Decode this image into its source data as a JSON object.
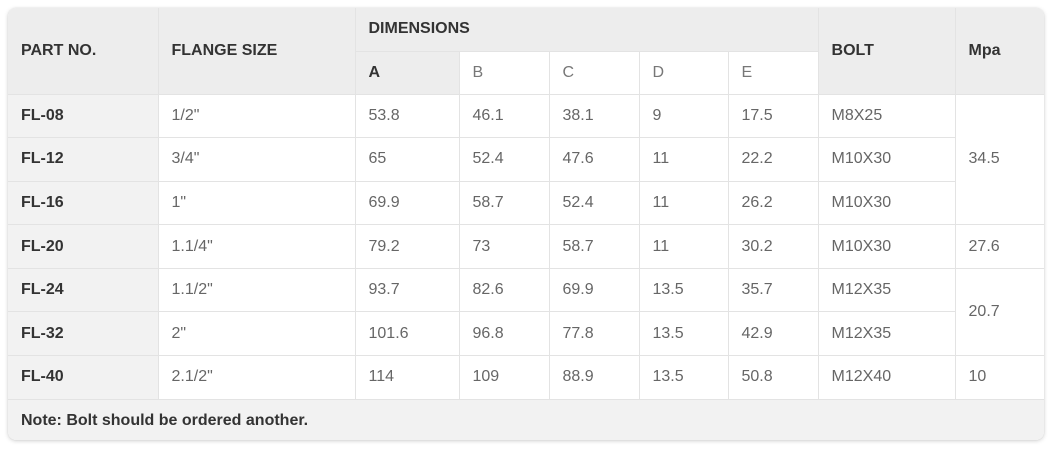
{
  "table": {
    "headers": {
      "part_no": "PART NO.",
      "flange_size": "FLANGE SIZE",
      "dimensions": "DIMENSIONS",
      "bolt": "BOLT",
      "mpa": "Mpa",
      "sub": [
        "A",
        "B",
        "C",
        "D",
        "E"
      ]
    },
    "rows": [
      {
        "part": "FL-08",
        "size": "1/2\"",
        "a": "53.8",
        "b": "46.1",
        "c": "38.1",
        "d": "9",
        "e": "17.5",
        "bolt": "M8X25"
      },
      {
        "part": "FL-12",
        "size": "3/4\"",
        "a": "65",
        "b": "52.4",
        "c": "47.6",
        "d": "11",
        "e": "22.2",
        "bolt": "M10X30"
      },
      {
        "part": "FL-16",
        "size": "1\"",
        "a": "69.9",
        "b": "58.7",
        "c": "52.4",
        "d": "11",
        "e": "26.2",
        "bolt": "M10X30"
      },
      {
        "part": "FL-20",
        "size": "1.1/4\"",
        "a": "79.2",
        "b": "73",
        "c": "58.7",
        "d": "11",
        "e": "30.2",
        "bolt": "M10X30"
      },
      {
        "part": "FL-24",
        "size": "1.1/2\"",
        "a": "93.7",
        "b": "82.6",
        "c": "69.9",
        "d": "13.5",
        "e": "35.7",
        "bolt": "M12X35"
      },
      {
        "part": "FL-32",
        "size": "2\"",
        "a": "101.6",
        "b": "96.8",
        "c": "77.8",
        "d": "13.5",
        "e": "42.9",
        "bolt": "M12X35"
      },
      {
        "part": "FL-40",
        "size": "2.1/2\"",
        "a": "114",
        "b": "109",
        "c": "88.9",
        "d": "13.5",
        "e": "50.8",
        "bolt": "M12X40"
      }
    ],
    "mpa_groups": [
      "34.5",
      "27.6",
      "20.7",
      "10"
    ],
    "note": "Note: Bolt should be ordered another."
  }
}
